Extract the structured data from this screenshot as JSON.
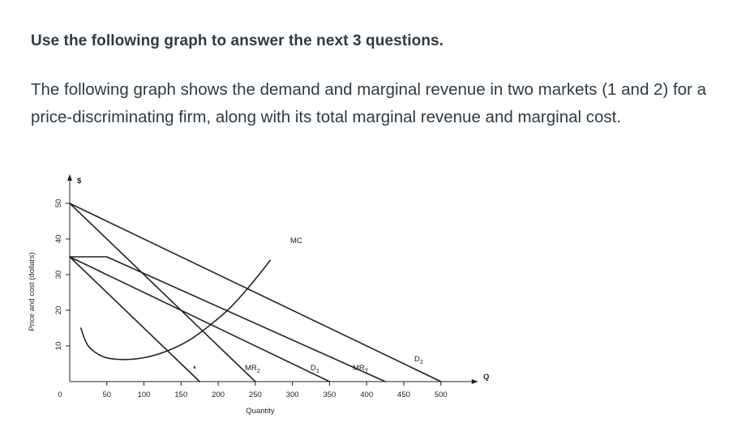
{
  "question": {
    "heading": "Use the following graph to answer the next 3 questions.",
    "description": "The following graph shows the demand and marginal revenue in two markets (1 and 2) for a price-discriminating firm, along with its total marginal revenue and marginal cost."
  },
  "chart_data": {
    "type": "line",
    "title": "",
    "xlabel": "Quantity",
    "ylabel": "Price and cost (dollars)",
    "y_unit_label": "$",
    "x_end_label": "Q",
    "xlim": [
      0,
      500
    ],
    "ylim": [
      0,
      50
    ],
    "x_ticks": [
      0,
      50,
      100,
      150,
      200,
      250,
      300,
      350,
      400,
      450,
      500
    ],
    "y_ticks": [
      10,
      20,
      30,
      40,
      50
    ],
    "grid": false,
    "series": [
      {
        "name": "D1",
        "label": "D",
        "label_sub": "1",
        "points": [
          [
            0,
            35
          ],
          [
            350,
            0
          ]
        ]
      },
      {
        "name": "MR1",
        "label": "",
        "label_sub": "",
        "points": [
          [
            0,
            35
          ],
          [
            175,
            0
          ]
        ]
      },
      {
        "name": "D2",
        "label": "D",
        "label_sub": "2",
        "points": [
          [
            0,
            50
          ],
          [
            500,
            0
          ]
        ]
      },
      {
        "name": "MR2",
        "label": "MR",
        "label_sub": "2",
        "points": [
          [
            0,
            50
          ],
          [
            250,
            0
          ]
        ]
      },
      {
        "name": "MRT",
        "label": "MR",
        "label_sub": "T",
        "points": [
          [
            0,
            35
          ],
          [
            50,
            35
          ],
          [
            425,
            0
          ]
        ]
      },
      {
        "name": "MC",
        "label": "MC",
        "label_sub": "",
        "points": [
          [
            15,
            15
          ],
          [
            25,
            10
          ],
          [
            45,
            7
          ],
          [
            70,
            6.2
          ],
          [
            100,
            6.7
          ],
          [
            130,
            8.5
          ],
          [
            160,
            11.5
          ],
          [
            190,
            16
          ],
          [
            215,
            20.5
          ],
          [
            235,
            25
          ],
          [
            255,
            30
          ],
          [
            270,
            34
          ]
        ]
      }
    ]
  }
}
